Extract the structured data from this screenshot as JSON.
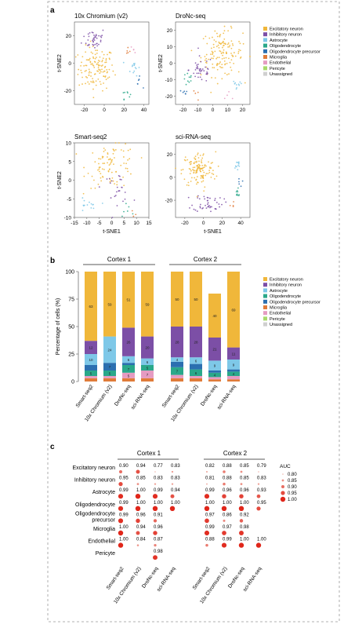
{
  "colors": {
    "excitatory": "#f0b73a",
    "inhibitory": "#7c4fa6",
    "astrocyte": "#7ec8e8",
    "oligodendrocyte": "#2aa88a",
    "opc": "#2b6fb0",
    "microglia": "#e07b39",
    "endothelial": "#e59bc2",
    "pericyte": "#a8d96b",
    "unassigned": "#d0d0d0",
    "auc_dot": "#e0261a",
    "frame": "#888888"
  },
  "panel_labels": {
    "a": "a",
    "b": "b",
    "c": "c"
  },
  "legend": {
    "entries": [
      "Excitatory neuron",
      "Inhibitory neuron",
      "Astrocyte",
      "Oligodendrocyte",
      "Oligodendrocyte precursor",
      "Microglia",
      "Endothelial",
      "Pericyte",
      "Unassigned"
    ],
    "keys": [
      "excitatory",
      "inhibitory",
      "astrocyte",
      "oligodendrocyte",
      "opc",
      "microglia",
      "endothelial",
      "pericyte",
      "unassigned"
    ]
  },
  "chart_data": [
    {
      "type": "scatter",
      "title": "10x Chromium (v2)",
      "xlabel": "",
      "ylabel": "t-SNE2",
      "xlim": [
        -30,
        45
      ],
      "ylim": [
        -30,
        30
      ],
      "xticks": [
        -20,
        0,
        20,
        40
      ],
      "yticks": [
        20,
        0,
        -20
      ],
      "clusters": [
        {
          "key": "excitatory",
          "cx": -8,
          "cy": -4,
          "sx": 9,
          "sy": 8,
          "n": 130
        },
        {
          "key": "inhibitory",
          "cx": -10,
          "cy": 18,
          "sx": 6,
          "sy": 4,
          "n": 40
        },
        {
          "key": "astrocyte",
          "cx": 30,
          "cy": -3,
          "sx": 3,
          "sy": 3,
          "n": 14
        },
        {
          "key": "oligodendrocyte",
          "cx": 22,
          "cy": -22,
          "sx": 2,
          "sy": 2,
          "n": 8
        },
        {
          "key": "opc",
          "cx": 34,
          "cy": -14,
          "sx": 2,
          "sy": 2,
          "n": 6
        },
        {
          "key": "microglia",
          "cx": 24,
          "cy": 8,
          "sx": 1.5,
          "sy": 1.5,
          "n": 5
        },
        {
          "key": "endothelial",
          "cx": 30,
          "cy": 10,
          "sx": 1.5,
          "sy": 1.5,
          "n": 4
        }
      ]
    },
    {
      "type": "scatter",
      "title": "DroNc-seq",
      "xlabel": "",
      "ylabel": "t-SNE2",
      "xlim": [
        -25,
        25
      ],
      "ylim": [
        -25,
        25
      ],
      "xticks": [
        -20,
        -10,
        0,
        10,
        20
      ],
      "yticks": [
        20,
        10,
        0,
        -10,
        -20
      ],
      "clusters": [
        {
          "key": "excitatory",
          "cx": 6,
          "cy": 6,
          "sx": 7,
          "sy": 7,
          "n": 140
        },
        {
          "key": "inhibitory",
          "cx": -8,
          "cy": -4,
          "sx": 4,
          "sy": 4,
          "n": 40
        },
        {
          "key": "astrocyte",
          "cx": 16,
          "cy": -14,
          "sx": 2,
          "sy": 2,
          "n": 10
        },
        {
          "key": "oligodendrocyte",
          "cx": -16,
          "cy": -10,
          "sx": 2,
          "sy": 2,
          "n": 10
        },
        {
          "key": "opc",
          "cx": -20,
          "cy": -18,
          "sx": 2,
          "sy": 2,
          "n": 6
        },
        {
          "key": "microglia",
          "cx": -12,
          "cy": -20,
          "sx": 1.5,
          "sy": 1.5,
          "n": 4
        },
        {
          "key": "endothelial",
          "cx": 12,
          "cy": -20,
          "sx": 1.5,
          "sy": 1.5,
          "n": 4
        }
      ]
    },
    {
      "type": "scatter",
      "title": "Smart-seq2",
      "xlabel": "t-SNE1",
      "ylabel": "t-SNE2",
      "xlim": [
        -15,
        15
      ],
      "ylim": [
        -10,
        10
      ],
      "xticks": [
        -15,
        -10,
        -5,
        0,
        5,
        10,
        15
      ],
      "yticks": [
        10,
        5,
        0,
        -5,
        -10
      ],
      "clusters": [
        {
          "key": "excitatory",
          "cx": 0,
          "cy": 4,
          "sx": 5,
          "sy": 3,
          "n": 90
        },
        {
          "key": "inhibitory",
          "cx": 2,
          "cy": -2,
          "sx": 3,
          "sy": 2,
          "n": 25
        },
        {
          "key": "astrocyte",
          "cx": -10,
          "cy": -7,
          "sx": 2,
          "sy": 1,
          "n": 14
        },
        {
          "key": "oligodendrocyte",
          "cx": 6,
          "cy": -8,
          "sx": 1.5,
          "sy": 1,
          "n": 6
        },
        {
          "key": "microglia",
          "cx": 9,
          "cy": -8,
          "sx": 1,
          "sy": 1,
          "n": 3
        }
      ]
    },
    {
      "type": "scatter",
      "title": "sci-RNA-seq",
      "xlabel": "t-SNE1",
      "ylabel": "",
      "xlim": [
        -30,
        50
      ],
      "ylim": [
        -35,
        30
      ],
      "xticks": [
        -20,
        0,
        20,
        40
      ],
      "yticks": [
        20,
        0,
        -20
      ],
      "clusters": [
        {
          "key": "excitatory",
          "cx": -5,
          "cy": 6,
          "sx": 9,
          "sy": 8,
          "n": 130
        },
        {
          "key": "inhibitory",
          "cx": 5,
          "cy": -22,
          "sx": 8,
          "sy": 4,
          "n": 45
        },
        {
          "key": "astrocyte",
          "cx": 36,
          "cy": 10,
          "sx": 2,
          "sy": 3,
          "n": 12
        },
        {
          "key": "oligodendrocyte",
          "cx": 36,
          "cy": -14,
          "sx": 2,
          "sy": 2,
          "n": 10
        },
        {
          "key": "opc",
          "cx": 38,
          "cy": -4,
          "sx": 2,
          "sy": 2,
          "n": 5
        },
        {
          "key": "microglia",
          "cx": 30,
          "cy": -24,
          "sx": 1.5,
          "sy": 1.5,
          "n": 4
        }
      ]
    },
    {
      "type": "bar",
      "subtype": "stacked",
      "ylabel": "Percentage of cells (%)",
      "ylim": [
        0,
        100
      ],
      "yticks": [
        0,
        25,
        50,
        75,
        100
      ],
      "groups": [
        {
          "title": "Cortex 1",
          "categories": [
            "Smart-seq2",
            "10x Chromium (v2)",
            "DroNc-seq",
            "sci-RNA-seq"
          ],
          "stacks": [
            [
              {
                "key": "microglia",
                "value": 3
              },
              {
                "key": "endothelial",
                "value": 2
              },
              {
                "key": "oligodendrocyte",
                "value": 5,
                "label": "5"
              },
              {
                "key": "opc",
                "value": 5
              },
              {
                "key": "astrocyte",
                "value": 10,
                "label": "10"
              },
              {
                "key": "inhibitory",
                "value": 12,
                "label": "12"
              },
              {
                "key": "excitatory",
                "value": 63,
                "label": "63"
              }
            ],
            [
              {
                "key": "microglia",
                "value": 3
              },
              {
                "key": "endothelial",
                "value": 2
              },
              {
                "key": "oligodendrocyte",
                "value": 5,
                "label": "5"
              },
              {
                "key": "opc",
                "value": 7,
                "label": "7"
              },
              {
                "key": "astrocyte",
                "value": 24,
                "label": "24"
              },
              {
                "key": "excitatory",
                "value": 59,
                "label": "59"
              }
            ],
            [
              {
                "key": "microglia",
                "value": 3
              },
              {
                "key": "endothelial",
                "value": 5,
                "label": "5"
              },
              {
                "key": "oligodendrocyte",
                "value": 7,
                "label": "7"
              },
              {
                "key": "opc",
                "value": 2
              },
              {
                "key": "astrocyte",
                "value": 6,
                "label": "6"
              },
              {
                "key": "inhibitory",
                "value": 26,
                "label": "26"
              },
              {
                "key": "excitatory",
                "value": 51,
                "label": "51"
              }
            ],
            [
              {
                "key": "microglia",
                "value": 3
              },
              {
                "key": "endothelial",
                "value": 7,
                "label": "7"
              },
              {
                "key": "oligodendrocyte",
                "value": 5,
                "label": "5"
              },
              {
                "key": "astrocyte",
                "value": 6,
                "label": "6"
              },
              {
                "key": "inhibitory",
                "value": 20,
                "label": "20"
              },
              {
                "key": "excitatory",
                "value": 59,
                "label": "59"
              }
            ]
          ]
        },
        {
          "title": "Cortex 2",
          "categories": [
            "Smart-seq2",
            "10x Chromium (v2)",
            "DroNc-seq",
            "sci-RNA-seq"
          ],
          "stacks": [
            [
              {
                "key": "microglia",
                "value": 3
              },
              {
                "key": "endothelial",
                "value": 3
              },
              {
                "key": "oligodendrocyte",
                "value": 7,
                "label": "7"
              },
              {
                "key": "opc",
                "value": 5
              },
              {
                "key": "astrocyte",
                "value": 4,
                "label": "4"
              },
              {
                "key": "inhibitory",
                "value": 28,
                "label": "28"
              },
              {
                "key": "excitatory",
                "value": 50,
                "label": "50"
              }
            ],
            [
              {
                "key": "microglia",
                "value": 3
              },
              {
                "key": "endothelial",
                "value": 2
              },
              {
                "key": "oligodendrocyte",
                "value": 6,
                "label": "6"
              },
              {
                "key": "opc",
                "value": 5
              },
              {
                "key": "astrocyte",
                "value": 6,
                "label": "6"
              },
              {
                "key": "inhibitory",
                "value": 28,
                "label": "28"
              },
              {
                "key": "excitatory",
                "value": 50,
                "label": "50"
              }
            ],
            [
              {
                "key": "microglia",
                "value": 2
              },
              {
                "key": "endothelial",
                "value": 2
              },
              {
                "key": "oligodendrocyte",
                "value": 4,
                "label": "4"
              },
              {
                "key": "opc",
                "value": 2
              },
              {
                "key": "astrocyte",
                "value": 9,
                "label": "9"
              },
              {
                "key": "inhibitory",
                "value": 21,
                "label": "21"
              },
              {
                "key": "excitatory",
                "value": 40,
                "label": "40"
              }
            ],
            [
              {
                "key": "microglia",
                "value": 2
              },
              {
                "key": "endothelial",
                "value": 3
              },
              {
                "key": "oligodendrocyte",
                "value": 4,
                "label": "4"
              },
              {
                "key": "opc",
                "value": 2
              },
              {
                "key": "astrocyte",
                "value": 9,
                "label": "9"
              },
              {
                "key": "inhibitory",
                "value": 11,
                "label": "11"
              },
              {
                "key": "excitatory",
                "value": 69,
                "label": "69"
              }
            ]
          ]
        }
      ]
    },
    {
      "type": "table",
      "subtype": "dot-matrix",
      "legend_title": "AUC",
      "legend_values": [
        0.8,
        0.85,
        0.9,
        0.95,
        1.0
      ],
      "rows": [
        "Excitatory neuron",
        "Inhibitory neuron",
        "Astrocyte",
        "Oligodendrocyte",
        "Oligodendrocyte precursor",
        "Microglia",
        "Endothelial",
        "Pericyte"
      ],
      "columns": [
        "Smart-seq2",
        "10x Chromium (v2)",
        "DroNc-seq",
        "sci-RNA-seq"
      ],
      "groups": [
        {
          "title": "Cortex 1",
          "values": [
            [
              "0.90",
              "0.94",
              "0.77",
              "0.83"
            ],
            [
              "0.95",
              "0.85",
              "0.83",
              "0.83"
            ],
            [
              "0.99",
              "1.00",
              "0.99",
              "0.94"
            ],
            [
              "0.99",
              "1.00",
              "1.00",
              "1.00"
            ],
            [
              "0.99",
              "0.96",
              "0.91",
              ""
            ],
            [
              "1.00",
              "0.94",
              "0.96",
              ""
            ],
            [
              "1.00",
              "0.84",
              "0.87",
              ""
            ],
            [
              "",
              "",
              "0.98",
              ""
            ]
          ]
        },
        {
          "title": "Cortex 2",
          "values": [
            [
              "0.82",
              "0.88",
              "0.85",
              "0.79"
            ],
            [
              "0.81",
              "0.88",
              "0.85",
              "0.83"
            ],
            [
              "0.99",
              "0.96",
              "0.96",
              "0.93"
            ],
            [
              "1.00",
              "1.00",
              "1.00",
              "0.95"
            ],
            [
              "0.97",
              "0.86",
              "0.92",
              ""
            ],
            [
              "0.99",
              "0.97",
              "0.98",
              ""
            ],
            [
              "0.88",
              "0.99",
              "1.00",
              "1.00"
            ],
            [
              "",
              "",
              "",
              ""
            ]
          ]
        }
      ]
    }
  ]
}
